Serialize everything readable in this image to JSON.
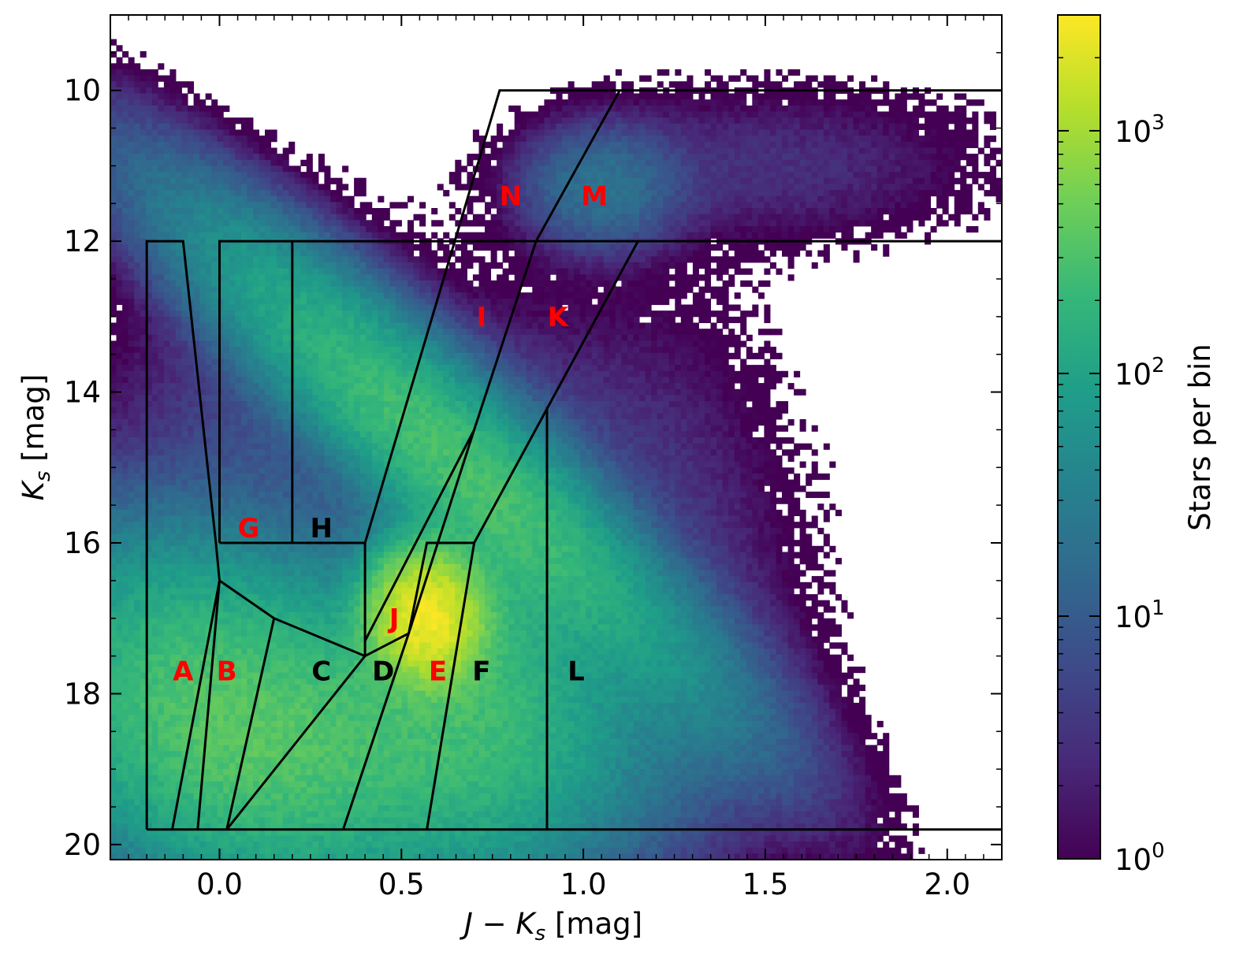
{
  "chart_data": {
    "type": "heatmap",
    "title": "",
    "xlabel_var": "J − K",
    "xlabel_sub": "s",
    "xlabel_unit": " [mag]",
    "ylabel_var": "K",
    "ylabel_sub": "s",
    "ylabel_unit": " [mag]",
    "xlim": [
      -0.3,
      2.15
    ],
    "ylim": [
      20.2,
      9.0
    ],
    "y_inverted": true,
    "xticks": [
      0.0,
      0.5,
      1.0,
      1.5,
      2.0
    ],
    "xtick_labels": [
      "0.0",
      "0.5",
      "1.0",
      "1.5",
      "2.0"
    ],
    "yticks": [
      10,
      12,
      14,
      16,
      18,
      20
    ],
    "ytick_labels": [
      "10",
      "12",
      "14",
      "16",
      "18",
      "20"
    ],
    "colorbar": {
      "label": "Stars per bin",
      "scale": "log",
      "range": [
        1,
        3000
      ],
      "ticks": [
        1,
        10,
        100,
        1000
      ],
      "tick_bases": [
        "10",
        "10",
        "10",
        "10"
      ],
      "tick_exponents": [
        "0",
        "1",
        "2",
        "3"
      ],
      "colors": [
        "#440154",
        "#482878",
        "#3e4989",
        "#31688e",
        "#26828e",
        "#1f9e89",
        "#35b779",
        "#6ece58",
        "#b5de2b",
        "#fde725"
      ]
    },
    "density_components": [
      {
        "x0": 0.62,
        "y0": 14.8,
        "angle": -0.64,
        "sig_a": 2.6,
        "sig_b": 0.09,
        "peak": 260
      },
      {
        "x0": 0.57,
        "y0": 17.0,
        "sig_x": 0.08,
        "sig_y": 0.45,
        "peak": 2500
      },
      {
        "x0": 0.0,
        "y0": 18.3,
        "angle": -0.35,
        "sig_a": 1.6,
        "sig_b": 0.18,
        "peak": 300
      },
      {
        "x0": 0.5,
        "y0": 18.6,
        "sig_x": 0.35,
        "sig_y": 1.0,
        "peak": 180
      },
      {
        "x0": 0.72,
        "y0": 17.5,
        "sig_x": 0.16,
        "sig_y": 1.4,
        "peak": 120
      },
      {
        "x0": 0.2,
        "y0": 15.0,
        "sig_x": 0.28,
        "sig_y": 1.5,
        "peak": 7
      },
      {
        "x0": 1.05,
        "y0": 11.3,
        "sig_x": 0.12,
        "sig_y": 0.45,
        "peak": 20
      },
      {
        "x0": 1.5,
        "y0": 11.0,
        "sig_x": 0.35,
        "sig_y": 0.6,
        "peak": 3
      },
      {
        "x0": 1.1,
        "y0": 16.5,
        "sig_x": 0.25,
        "sig_y": 2.0,
        "peak": 5
      }
    ],
    "region_boundaries": [
      [
        [
          -0.2,
          19.8
        ],
        [
          -0.2,
          12.0
        ],
        [
          -0.1,
          12.0
        ],
        [
          -0.01,
          16.0
        ],
        [
          0.0,
          16.5
        ],
        [
          -0.13,
          19.8
        ]
      ],
      [
        [
          -0.06,
          19.8
        ],
        [
          0.0,
          16.5
        ]
      ],
      [
        [
          0.0,
          16.5
        ],
        [
          0.15,
          17.0
        ],
        [
          0.4,
          17.5
        ]
      ],
      [
        [
          0.15,
          17.0
        ],
        [
          0.02,
          19.8
        ]
      ],
      [
        [
          0.4,
          17.5
        ],
        [
          0.02,
          19.8
        ]
      ],
      [
        [
          0.0,
          16.0
        ],
        [
          0.0,
          12.0
        ],
        [
          1.15,
          12.0
        ],
        [
          2.15,
          12.0
        ]
      ],
      [
        [
          0.2,
          12.0
        ],
        [
          0.2,
          16.0
        ]
      ],
      [
        [
          0.0,
          16.0
        ],
        [
          0.4,
          16.0
        ],
        [
          0.4,
          17.5
        ]
      ],
      [
        [
          0.4,
          16.0
        ],
        [
          0.77,
          10.0
        ],
        [
          2.15,
          10.0
        ]
      ],
      [
        [
          0.4,
          17.5
        ],
        [
          0.52,
          17.2
        ],
        [
          0.57,
          16.0
        ],
        [
          0.7,
          16.0
        ],
        [
          1.15,
          12.0
        ]
      ],
      [
        [
          0.4,
          17.3
        ],
        [
          0.7,
          14.5
        ]
      ],
      [
        [
          0.52,
          17.2
        ],
        [
          0.7,
          14.5
        ],
        [
          0.87,
          12.0
        ],
        [
          1.1,
          10.0
        ]
      ],
      [
        [
          0.34,
          19.8
        ],
        [
          0.52,
          17.2
        ]
      ],
      [
        [
          0.57,
          19.8
        ],
        [
          0.7,
          16.0
        ]
      ],
      [
        [
          0.9,
          14.2
        ],
        [
          0.9,
          19.8
        ]
      ],
      [
        [
          -0.2,
          19.8
        ],
        [
          2.15,
          19.8
        ]
      ]
    ],
    "region_labels": [
      {
        "text": "A",
        "x": -0.1,
        "y": 17.7,
        "color": "#ff0000"
      },
      {
        "text": "B",
        "x": 0.02,
        "y": 17.7,
        "color": "#ff0000"
      },
      {
        "text": "C",
        "x": 0.28,
        "y": 17.7,
        "color": "#000000"
      },
      {
        "text": "D",
        "x": 0.45,
        "y": 17.7,
        "color": "#000000"
      },
      {
        "text": "E",
        "x": 0.6,
        "y": 17.7,
        "color": "#ff0000"
      },
      {
        "text": "F",
        "x": 0.72,
        "y": 17.7,
        "color": "#000000"
      },
      {
        "text": "G",
        "x": 0.08,
        "y": 15.8,
        "color": "#ff0000"
      },
      {
        "text": "H",
        "x": 0.28,
        "y": 15.8,
        "color": "#000000"
      },
      {
        "text": "I",
        "x": 0.72,
        "y": 13.0,
        "color": "#ff0000"
      },
      {
        "text": "J",
        "x": 0.48,
        "y": 17.0,
        "color": "#ff0000"
      },
      {
        "text": "K",
        "x": 0.93,
        "y": 13.0,
        "color": "#ff0000"
      },
      {
        "text": "L",
        "x": 0.98,
        "y": 17.7,
        "color": "#000000"
      },
      {
        "text": "M",
        "x": 1.03,
        "y": 11.4,
        "color": "#ff0000"
      },
      {
        "text": "N",
        "x": 0.8,
        "y": 11.4,
        "color": "#ff0000"
      }
    ]
  }
}
